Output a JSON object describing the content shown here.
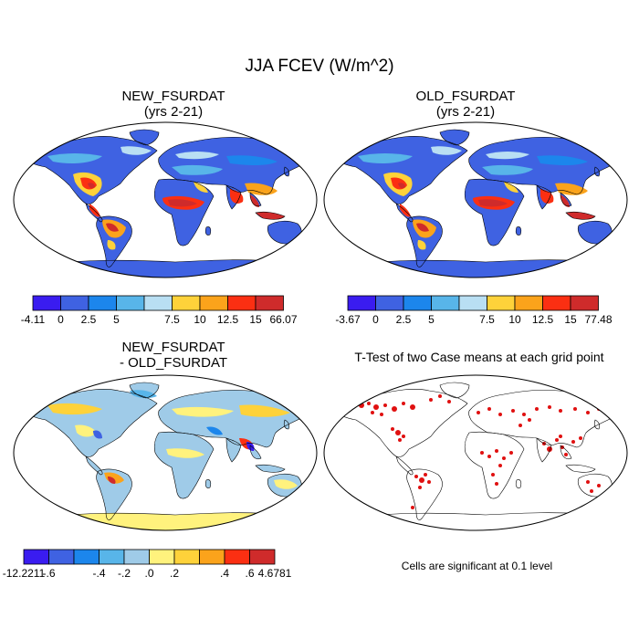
{
  "main_title": "JJA FCEV (W/m^2)",
  "panels": [
    {
      "id": "new",
      "title_line1": "NEW_FSURDAT",
      "title_line2": "(yrs 2-21)"
    },
    {
      "id": "old",
      "title_line1": "OLD_FSURDAT",
      "title_line2": "(yrs 2-21)"
    },
    {
      "id": "diff",
      "title_line1": "NEW_FSURDAT",
      "title_line2": "- OLD_FSURDAT"
    },
    {
      "id": "ttest",
      "title_line1": "T-Test of two Case means at each grid point"
    }
  ],
  "colorbars": {
    "new": {
      "colors": [
        "#3a1cf0",
        "#3f62e2",
        "#1c86ec",
        "#58b5e9",
        "#b9dff3",
        "#fed23a",
        "#fba31b",
        "#fb2f12",
        "#cf2b2b"
      ],
      "labels": [
        "-4.11",
        "0",
        "2.5",
        "5",
        "7.5",
        "10",
        "12.5",
        "15",
        "66.07"
      ]
    },
    "old": {
      "colors": [
        "#3a1cf0",
        "#3f62e2",
        "#1c86ec",
        "#58b5e9",
        "#b9dff3",
        "#fed23a",
        "#fba31b",
        "#fb2f12",
        "#cf2b2b"
      ],
      "labels": [
        "-3.67",
        "0",
        "2.5",
        "5",
        "7.5",
        "10",
        "12.5",
        "15",
        "77.48"
      ]
    },
    "diff": {
      "colors": [
        "#3a1cf0",
        "#3f62e2",
        "#1c86ec",
        "#58b5e9",
        "#9fcbe8",
        "#fff27d",
        "#fed23a",
        "#fba31b",
        "#fb2f12",
        "#cf2b2b"
      ],
      "labels": [
        "-12.2211",
        "-.6",
        "-.4",
        "-.2",
        ".0",
        ".2",
        ".4",
        ".6",
        "4.6781"
      ]
    }
  },
  "ttest_note": "Cells are significant at 0.1 level",
  "colors": {
    "ocean": "#ffffff",
    "land_base_mean": "#3f62e2",
    "land_base_diff": "#9fcbe8",
    "antarctica_diff": "#fff27d",
    "significant": "#e01010"
  }
}
